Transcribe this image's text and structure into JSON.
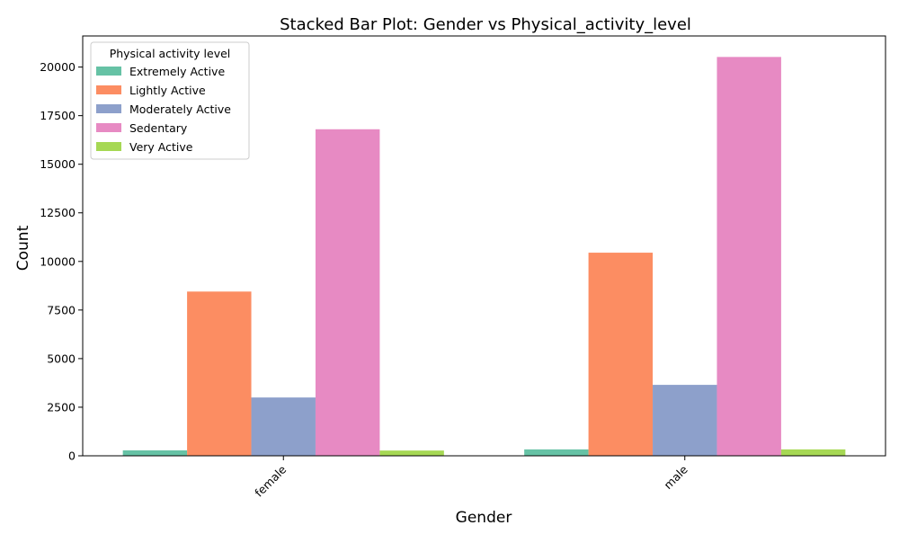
{
  "chart_data": {
    "type": "bar",
    "title": "Stacked Bar Plot: Gender vs Physical_activity_level",
    "xlabel": "Gender",
    "ylabel": "Count",
    "categories": [
      "female",
      "male"
    ],
    "ylim": [
      0,
      21600
    ],
    "yticks": [
      0,
      2500,
      5000,
      7500,
      10000,
      12500,
      15000,
      17500,
      20000
    ],
    "legend": {
      "title": "Physical activity level",
      "placement": "top-left"
    },
    "grid": false,
    "series": [
      {
        "name": "Extremely Active",
        "color": "#66c2a5",
        "values": [
          280,
          330
        ]
      },
      {
        "name": "Lightly Active",
        "color": "#fc8d62",
        "values": [
          8450,
          10450
        ]
      },
      {
        "name": "Moderately Active",
        "color": "#8da0cb",
        "values": [
          3000,
          3650
        ]
      },
      {
        "name": "Sedentary",
        "color": "#e78ac3",
        "values": [
          16800,
          20520
        ]
      },
      {
        "name": "Very Active",
        "color": "#a6d854",
        "values": [
          270,
          330
        ]
      }
    ]
  }
}
